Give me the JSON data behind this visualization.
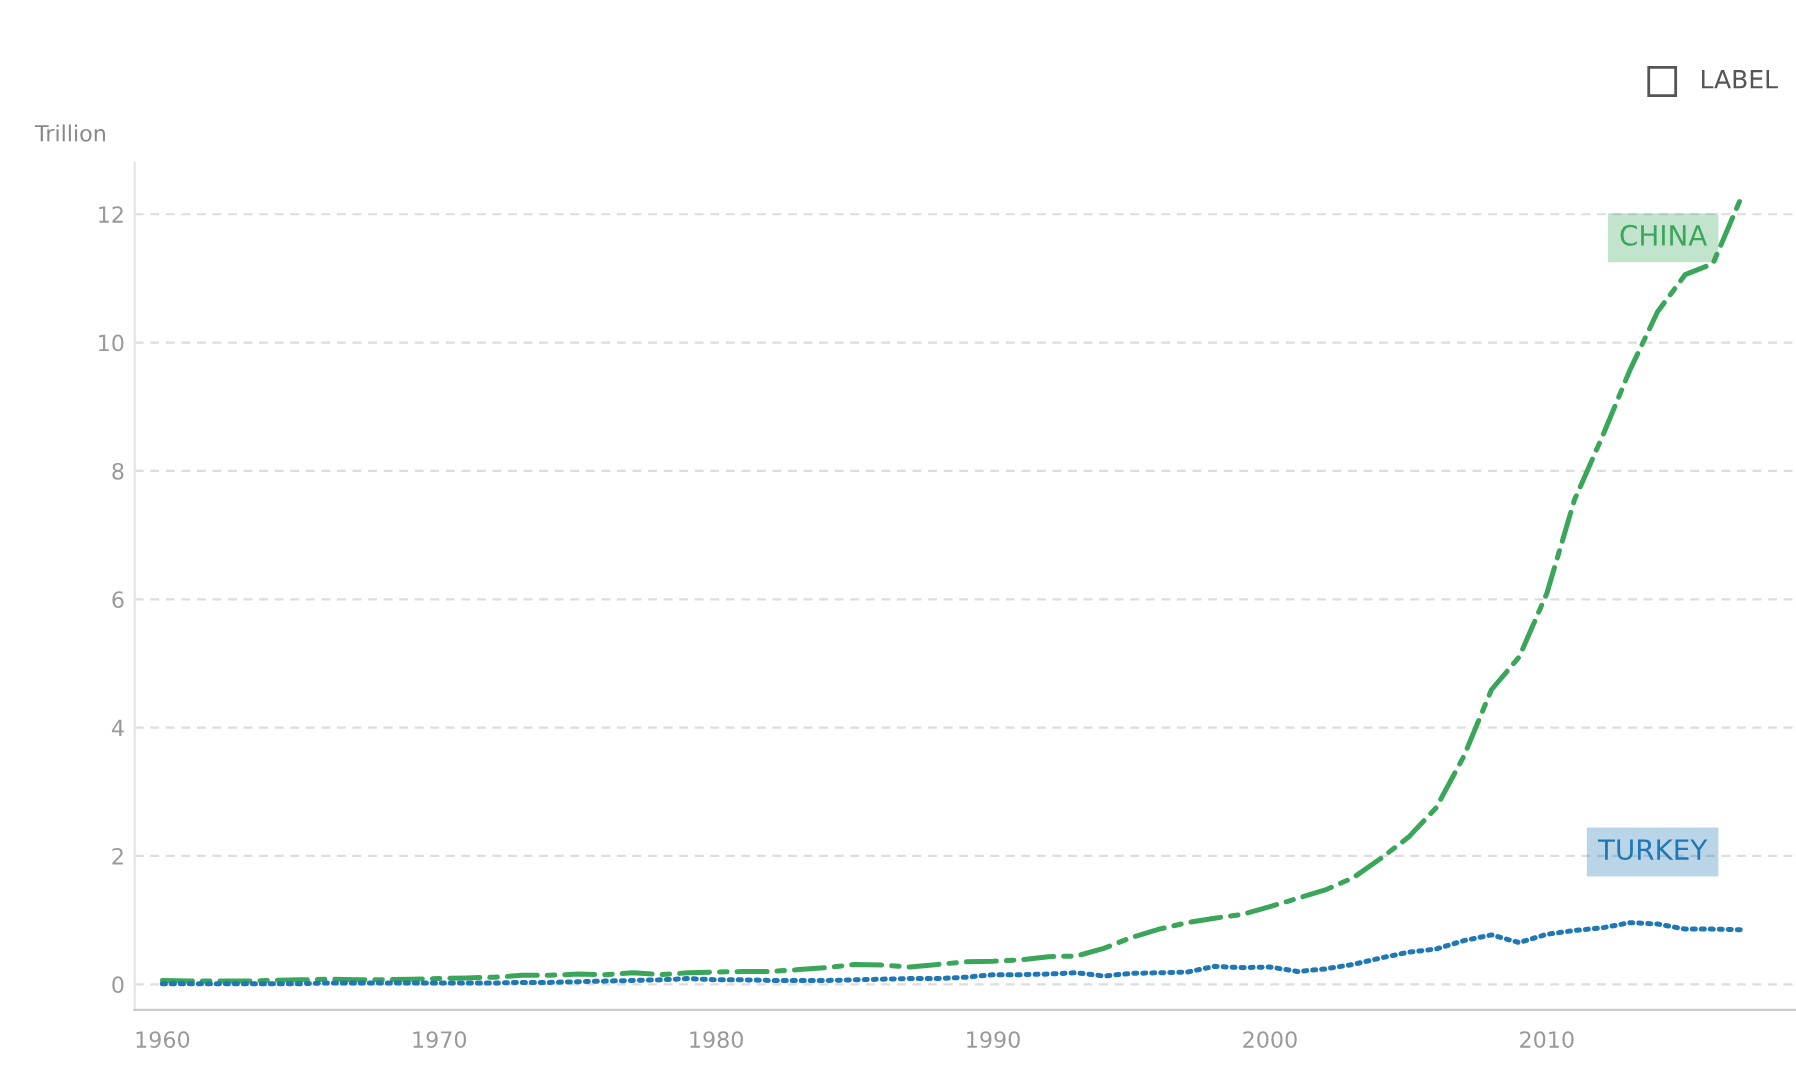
{
  "chart_data": {
    "type": "line",
    "ylabel": "Trillion",
    "annotations": [
      "LABEL"
    ],
    "x": [
      1960,
      1961,
      1962,
      1963,
      1964,
      1965,
      1966,
      1967,
      1968,
      1969,
      1970,
      1971,
      1972,
      1973,
      1974,
      1975,
      1976,
      1977,
      1978,
      1979,
      1980,
      1981,
      1982,
      1983,
      1984,
      1985,
      1986,
      1987,
      1988,
      1989,
      1990,
      1991,
      1992,
      1993,
      1994,
      1995,
      1996,
      1997,
      1998,
      1999,
      2000,
      2001,
      2002,
      2003,
      2004,
      2005,
      2006,
      2007,
      2008,
      2009,
      2010,
      2011,
      2012,
      2013,
      2014,
      2015,
      2016,
      2017
    ],
    "series": [
      {
        "name": "CHINA",
        "color": "#3aa65a",
        "line_style": "dashed",
        "values": [
          0.06,
          0.05,
          0.05,
          0.05,
          0.06,
          0.07,
          0.08,
          0.07,
          0.07,
          0.08,
          0.09,
          0.1,
          0.11,
          0.14,
          0.14,
          0.16,
          0.15,
          0.18,
          0.15,
          0.18,
          0.19,
          0.2,
          0.2,
          0.23,
          0.26,
          0.31,
          0.3,
          0.27,
          0.31,
          0.35,
          0.36,
          0.38,
          0.43,
          0.44,
          0.56,
          0.73,
          0.86,
          0.96,
          1.03,
          1.09,
          1.21,
          1.34,
          1.47,
          1.66,
          1.96,
          2.29,
          2.75,
          3.55,
          4.59,
          5.1,
          6.09,
          7.55,
          8.53,
          9.57,
          10.48,
          11.06,
          11.23,
          12.24
        ]
      },
      {
        "name": "TURKEY",
        "color": "#1f77b4",
        "line_style": "dotted",
        "values": [
          0.01,
          0.01,
          0.01,
          0.01,
          0.01,
          0.01,
          0.02,
          0.02,
          0.02,
          0.02,
          0.02,
          0.02,
          0.02,
          0.03,
          0.03,
          0.04,
          0.05,
          0.06,
          0.07,
          0.09,
          0.07,
          0.07,
          0.06,
          0.06,
          0.06,
          0.07,
          0.08,
          0.09,
          0.09,
          0.11,
          0.15,
          0.15,
          0.16,
          0.18,
          0.13,
          0.17,
          0.18,
          0.19,
          0.28,
          0.26,
          0.27,
          0.2,
          0.24,
          0.31,
          0.41,
          0.5,
          0.55,
          0.68,
          0.77,
          0.65,
          0.78,
          0.84,
          0.88,
          0.96,
          0.94,
          0.86,
          0.86,
          0.85
        ]
      }
    ],
    "xlim": [
      1959,
      2019
    ],
    "xticks": [
      1960,
      1970,
      1980,
      1990,
      2000,
      2010
    ],
    "ylim": [
      -0.4,
      12.8
    ],
    "yticks": [
      0,
      2,
      4,
      6,
      8,
      10,
      12
    ],
    "grid": "y",
    "legend": false
  }
}
